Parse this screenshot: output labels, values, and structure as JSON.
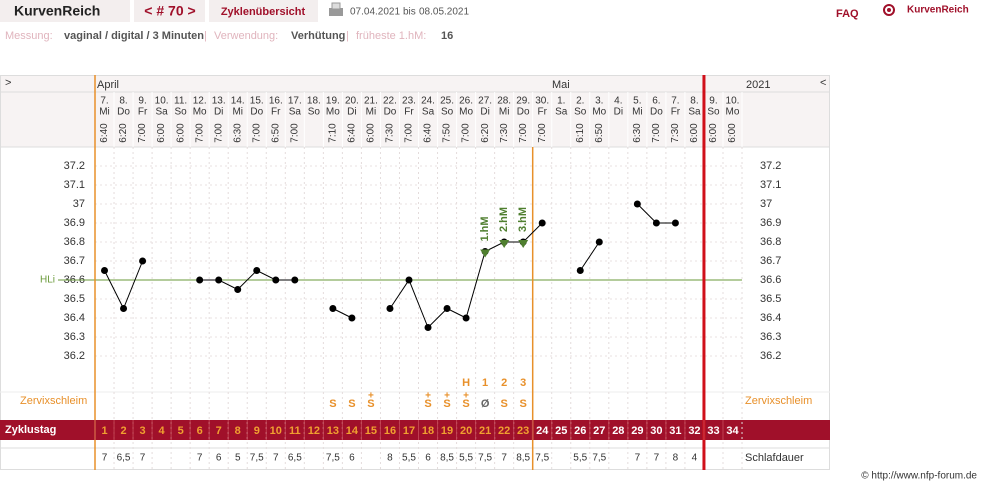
{
  "header": {
    "brand": "KurvenReich",
    "cycle_nav": "< # 70 >",
    "overview": "Zyklenübersicht",
    "date_range_from": "07.04.2021",
    "date_range_sep": "bis",
    "date_range_to": "08.05.2021",
    "faq": "FAQ",
    "logo": "KurvenReich"
  },
  "info": {
    "measurement_label": "Messung:",
    "measurement": "vaginal / digital / 3 Minuten",
    "separator": "|",
    "usage_label": "Verwendung:",
    "usage": "Verhütung",
    "earliest_label": "früheste 1.hM:",
    "earliest": "16"
  },
  "chart_data": {
    "type": "line",
    "nav_left": ">",
    "nav_right": "<",
    "months": [
      "April",
      "Mai"
    ],
    "year": "2021",
    "categories": [
      "7.",
      "8.",
      "9.",
      "10.",
      "11.",
      "12.",
      "13.",
      "14.",
      "15.",
      "16.",
      "17.",
      "18.",
      "19.",
      "20.",
      "21.",
      "22.",
      "23.",
      "24.",
      "25.",
      "26.",
      "27.",
      "28.",
      "29.",
      "30.",
      "1.",
      "2.",
      "3.",
      "4.",
      "5.",
      "6.",
      "7.",
      "8.",
      "9.",
      "10."
    ],
    "weekdays": [
      "Mi",
      "Do",
      "Fr",
      "Sa",
      "So",
      "Mo",
      "Di",
      "Mi",
      "Do",
      "Fr",
      "Sa",
      "So",
      "Mo",
      "Di",
      "Mi",
      "Do",
      "Fr",
      "Sa",
      "So",
      "Mo",
      "Di",
      "Mi",
      "Do",
      "Fr",
      "Sa",
      "So",
      "Mo",
      "Di",
      "Mi",
      "Do",
      "Fr",
      "Sa",
      "So",
      "Mo"
    ],
    "times": [
      "6:40",
      "6:20",
      "7:00",
      "6:00",
      "6:00",
      "7:00",
      "7:00",
      "6:30",
      "7:00",
      "6:50",
      "7:00",
      null,
      "7:10",
      "6:40",
      "6:00",
      "7:30",
      "7:00",
      "6:40",
      "7:50",
      "7:00",
      "6:20",
      "7:30",
      "7:00",
      "7:00",
      null,
      "6:10",
      "6:50",
      null,
      "6:30",
      "7:00",
      "7:30",
      "6:00",
      "6:00",
      "6:00"
    ],
    "values": [
      36.65,
      36.45,
      36.7,
      null,
      null,
      36.6,
      36.6,
      36.55,
      36.65,
      36.6,
      36.6,
      null,
      36.45,
      36.4,
      null,
      36.45,
      36.6,
      36.35,
      36.45,
      36.4,
      36.75,
      36.8,
      36.8,
      36.9,
      null,
      36.65,
      36.8,
      null,
      37.0,
      36.9,
      36.9,
      null,
      null,
      null
    ],
    "color": "#000000",
    "ylim": [
      36.0,
      37.3
    ],
    "yticks": [
      36.2,
      36.3,
      36.4,
      36.5,
      36.6,
      36.7,
      36.8,
      36.9,
      37,
      37.1,
      37.2
    ],
    "grid": true,
    "cover_line": {
      "label": "HLi",
      "value": 36.6,
      "color": "#6a9a3a"
    },
    "hm_labels": [
      null,
      null,
      null,
      null,
      null,
      null,
      null,
      null,
      null,
      null,
      null,
      null,
      null,
      null,
      null,
      null,
      null,
      null,
      null,
      null,
      "1.hM",
      "2.hM",
      "3.hM",
      null,
      null,
      null,
      null,
      null,
      null,
      null,
      null,
      null,
      null,
      null
    ],
    "hm_color": "#4f7f2f",
    "peak_labels": [
      null,
      null,
      null,
      null,
      null,
      null,
      null,
      null,
      null,
      null,
      null,
      null,
      null,
      null,
      null,
      null,
      null,
      null,
      null,
      "H",
      "1",
      "2",
      "3",
      null,
      null,
      null,
      null,
      null,
      null,
      null,
      null,
      null,
      null,
      null
    ],
    "cervix_label": "Zervixschleim",
    "cervix": [
      null,
      null,
      null,
      null,
      null,
      null,
      null,
      null,
      null,
      null,
      null,
      null,
      "S",
      "S",
      "S",
      null,
      null,
      "S",
      "S",
      "S",
      "Ø",
      "S",
      "S",
      null,
      null,
      null,
      null,
      null,
      null,
      null,
      null,
      null,
      null,
      null
    ],
    "cervix_plus": [
      null,
      null,
      null,
      null,
      null,
      null,
      null,
      null,
      null,
      null,
      null,
      null,
      null,
      null,
      "+",
      null,
      null,
      "+",
      "+",
      "+",
      null,
      null,
      null,
      null,
      null,
      null,
      null,
      null,
      null,
      null,
      null,
      null,
      null,
      null
    ],
    "cycle_day_label": "Zyklustag",
    "cycle_days": [
      1,
      2,
      3,
      4,
      5,
      6,
      7,
      8,
      9,
      10,
      11,
      12,
      13,
      14,
      15,
      16,
      17,
      18,
      19,
      20,
      21,
      22,
      23,
      24,
      25,
      26,
      27,
      28,
      29,
      30,
      31,
      32,
      33,
      34
    ],
    "sleep_label": "Schlafdauer",
    "sleep": [
      "7",
      "6,5",
      "7",
      null,
      null,
      "7",
      "6",
      "5",
      "7,5",
      "7",
      "6,5",
      null,
      "7,5",
      "6",
      null,
      "8",
      "5,5",
      "6",
      "8,5",
      "5,5",
      "7,5",
      "7",
      "8,5",
      "7,5",
      null,
      "5,5",
      "7,5",
      null,
      "7",
      "7",
      "8",
      "4",
      null,
      null
    ]
  },
  "footer": "© http://www.nfp-forum.de"
}
